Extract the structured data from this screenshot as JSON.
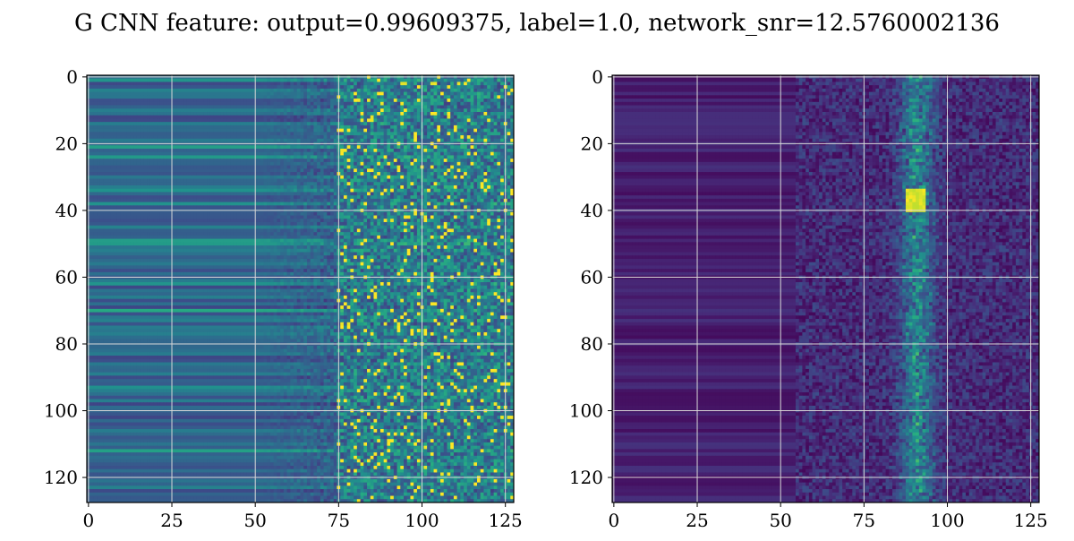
{
  "figure": {
    "title": "G CNN feature: output=0.99609375, label=1.0, network_snr=12.5760002136"
  },
  "chart_data": [
    {
      "type": "heatmap",
      "title": "",
      "xlabel": "",
      "ylabel": "",
      "xlim": [
        0,
        128
      ],
      "ylim": [
        128,
        0
      ],
      "x_ticks": [
        "0",
        "25",
        "50",
        "75",
        "100",
        "125"
      ],
      "y_ticks": [
        "0",
        "20",
        "40",
        "60",
        "80",
        "100",
        "120"
      ],
      "grid": true,
      "colormap": "viridis",
      "rows": 128,
      "cols": 128,
      "description_of_pattern": "left region (0-75) horizontal bands mid blue/teal; right region (75-128) noisy with green/yellow speckle"
    },
    {
      "type": "heatmap",
      "title": "",
      "xlabel": "",
      "ylabel": "",
      "xlim": [
        0,
        128
      ],
      "ylim": [
        128,
        0
      ],
      "x_ticks": [
        "0",
        "25",
        "50",
        "75",
        "100",
        "125"
      ],
      "y_ticks": [
        "0",
        "20",
        "40",
        "60",
        "80",
        "100",
        "120"
      ],
      "grid": true,
      "colormap": "viridis",
      "rows": 128,
      "cols": 128,
      "description_of_pattern": "mostly dark purple; noisy teal/green column band near x=85-100 with yellow peaks near y=35-40"
    }
  ],
  "colors": {
    "viridis_low": "#440154",
    "viridis_mid": "#21918c",
    "viridis_high": "#fde725",
    "grid": "#d8d8d8"
  }
}
